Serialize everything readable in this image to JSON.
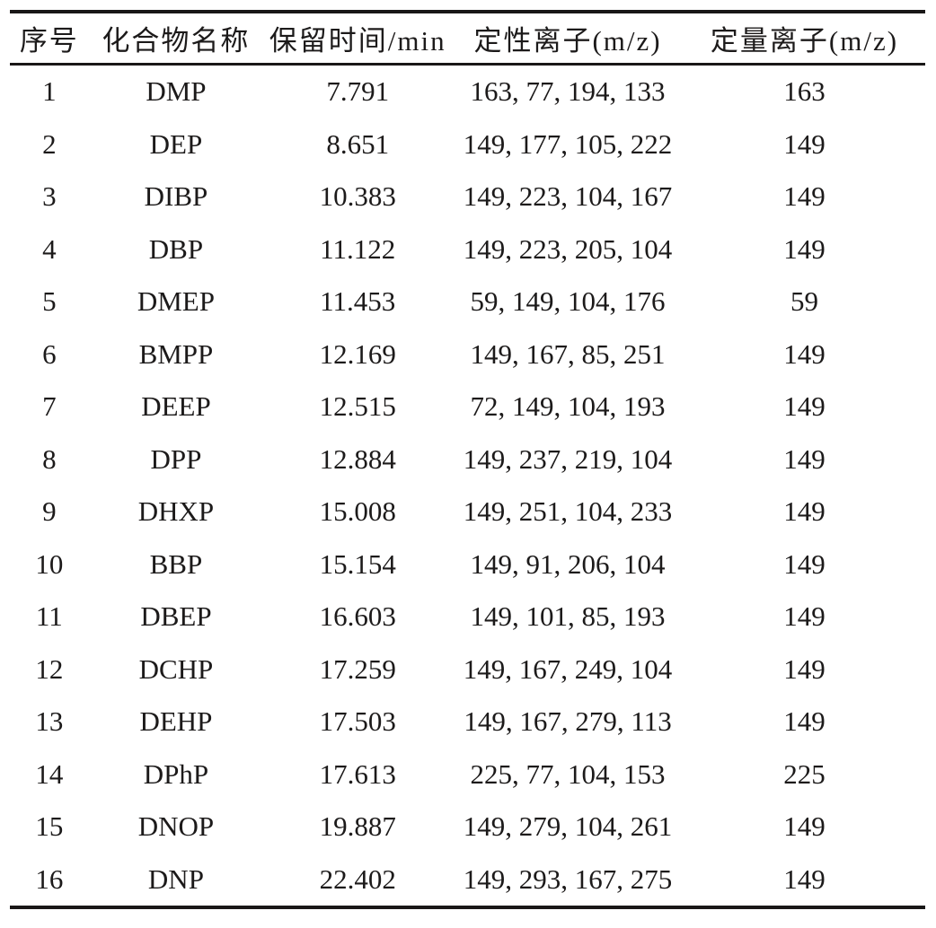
{
  "table": {
    "headers": [
      {
        "id": "no",
        "label": "序号"
      },
      {
        "id": "compound",
        "label": "化合物名称"
      },
      {
        "id": "retention_time",
        "label": "保留时间/min"
      },
      {
        "id": "qualitative_ions",
        "label": "定性离子(m/z)"
      },
      {
        "id": "quantitative_ion",
        "label": "定量离子(m/z)"
      }
    ],
    "rows": [
      {
        "no": "1",
        "compound": "DMP",
        "retention_time": "7.791",
        "qualitative_ions": "163, 77, 194, 133",
        "quantitative_ion": "163"
      },
      {
        "no": "2",
        "compound": "DEP",
        "retention_time": "8.651",
        "qualitative_ions": "149, 177, 105, 222",
        "quantitative_ion": "149"
      },
      {
        "no": "3",
        "compound": "DIBP",
        "retention_time": "10.383",
        "qualitative_ions": "149, 223, 104, 167",
        "quantitative_ion": "149"
      },
      {
        "no": "4",
        "compound": "DBP",
        "retention_time": "11.122",
        "qualitative_ions": "149, 223, 205, 104",
        "quantitative_ion": "149"
      },
      {
        "no": "5",
        "compound": "DMEP",
        "retention_time": "11.453",
        "qualitative_ions": "59, 149, 104, 176",
        "quantitative_ion": "59"
      },
      {
        "no": "6",
        "compound": "BMPP",
        "retention_time": "12.169",
        "qualitative_ions": "149, 167, 85, 251",
        "quantitative_ion": "149"
      },
      {
        "no": "7",
        "compound": "DEEP",
        "retention_time": "12.515",
        "qualitative_ions": "72, 149, 104, 193",
        "quantitative_ion": "149"
      },
      {
        "no": "8",
        "compound": "DPP",
        "retention_time": "12.884",
        "qualitative_ions": "149, 237, 219, 104",
        "quantitative_ion": "149"
      },
      {
        "no": "9",
        "compound": "DHXP",
        "retention_time": "15.008",
        "qualitative_ions": "149, 251, 104, 233",
        "quantitative_ion": "149"
      },
      {
        "no": "10",
        "compound": "BBP",
        "retention_time": "15.154",
        "qualitative_ions": "149, 91, 206, 104",
        "quantitative_ion": "149"
      },
      {
        "no": "11",
        "compound": "DBEP",
        "retention_time": "16.603",
        "qualitative_ions": "149, 101, 85, 193",
        "quantitative_ion": "149"
      },
      {
        "no": "12",
        "compound": "DCHP",
        "retention_time": "17.259",
        "qualitative_ions": "149, 167, 249, 104",
        "quantitative_ion": "149"
      },
      {
        "no": "13",
        "compound": "DEHP",
        "retention_time": "17.503",
        "qualitative_ions": "149, 167, 279, 113",
        "quantitative_ion": "149"
      },
      {
        "no": "14",
        "compound": "DPhP",
        "retention_time": "17.613",
        "qualitative_ions": "225, 77, 104, 153",
        "quantitative_ion": "225"
      },
      {
        "no": "15",
        "compound": "DNOP",
        "retention_time": "19.887",
        "qualitative_ions": "149, 279, 104, 261",
        "quantitative_ion": "149"
      },
      {
        "no": "16",
        "compound": "DNP",
        "retention_time": "22.402",
        "qualitative_ions": "149, 293, 167, 275",
        "quantitative_ion": "149"
      }
    ]
  },
  "colors": {
    "text": "#1c1a1a",
    "rule": "#191717",
    "background": "#ffffff"
  }
}
